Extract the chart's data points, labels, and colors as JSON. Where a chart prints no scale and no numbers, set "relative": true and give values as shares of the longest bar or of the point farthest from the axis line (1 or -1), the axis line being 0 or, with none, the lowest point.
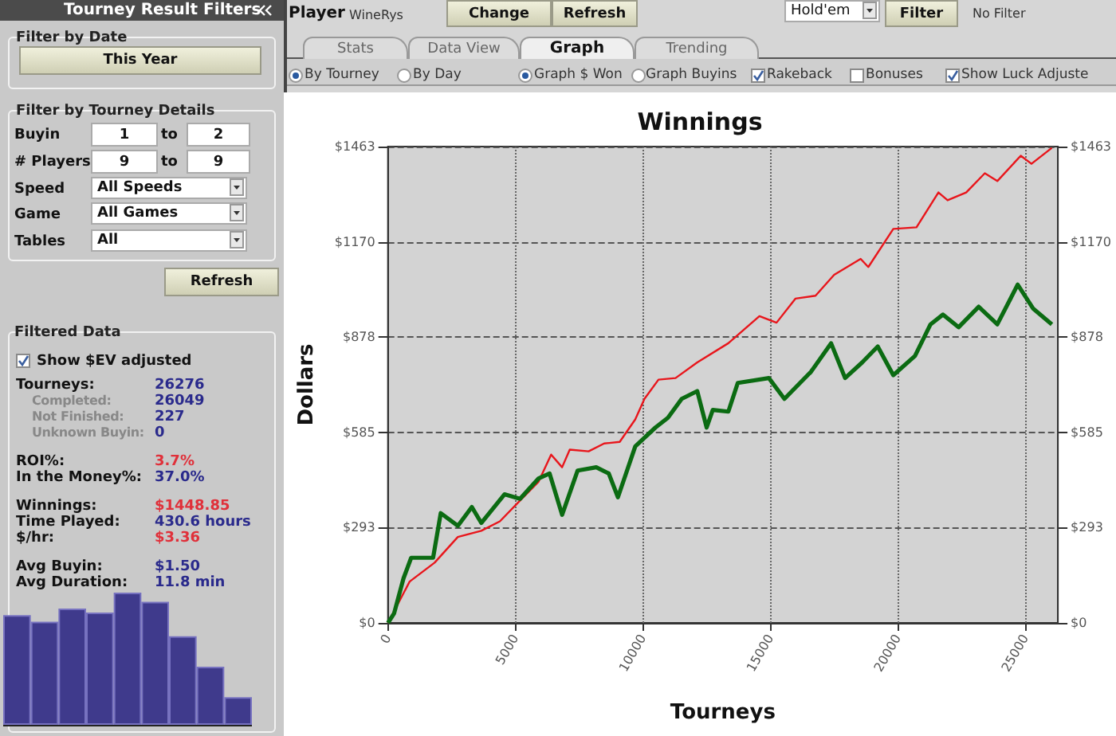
{
  "chart_data": [
    {
      "type": "other",
      "annotations": [
        "Tourney Result Filters",
        "Filter by Date",
        "This Year",
        "Filter by Tourney Details",
        "Buyin",
        "1",
        "to",
        "2",
        "# Players",
        "9",
        "to",
        "9",
        "Speed",
        "All Speeds",
        "Game",
        "All Games",
        "Tables",
        "All",
        "Refresh",
        "Filtered Data",
        "Show $EV adjusted",
        "Tourneys:",
        "26276",
        "Completed:",
        "26049",
        "Not Finished:",
        "227",
        "Unknown Buyin:",
        "0",
        "ROI%:",
        "3.7%",
        "In the Money%:",
        "37.0%",
        "Winnings:",
        "$1448.85",
        "Time Played:",
        "430.6 hours",
        "$/hr:",
        "$3.36",
        "Avg Buyin:",
        "$1.50",
        "Avg Duration:",
        "11.8 min",
        "Player",
        "WineRys",
        "Change",
        "Refresh",
        "Hold'em",
        "Filter",
        "No Filter",
        "Stats",
        "Data View",
        "Graph",
        "Trending",
        "By Tourney",
        "By Day",
        "Graph $ Won",
        "Graph Buyins",
        "Rakeback",
        "Bonuses",
        "Show Luck Adjuste"
      ]
    },
    {
      "type": "bar",
      "relative": true,
      "categories": [
        null,
        null,
        null,
        null,
        null,
        null,
        null,
        null,
        null
      ],
      "values": [
        0.83,
        0.78,
        0.88,
        0.85,
        1,
        0.93,
        0.67,
        0.44,
        0.21
      ],
      "color": "#3f3a8c"
    },
    {
      "type": "line",
      "title": "Winnings",
      "xlabel": "Tourneys",
      "ylabel": "Dollars",
      "xlim": [
        0,
        26276
      ],
      "xticks": [
        0,
        5000,
        10000,
        15000,
        20000,
        25000
      ],
      "ylim": [
        0,
        1463
      ],
      "yticks": [
        {
          "value": 0,
          "label": "$0"
        },
        {
          "value": 293,
          "label": "$293"
        },
        {
          "value": 585,
          "label": "$585"
        },
        {
          "value": 878,
          "label": "$878"
        },
        {
          "value": 1170,
          "label": "$1170"
        },
        {
          "value": 1463,
          "label": "$1463"
        }
      ],
      "y2lim": [
        0,
        1463
      ],
      "y2ticks": [
        {
          "value": 0,
          "label": "$0"
        },
        {
          "value": 293,
          "label": "$293"
        },
        {
          "value": 585,
          "label": "$585"
        },
        {
          "value": 878,
          "label": "$878"
        },
        {
          "value": 1170,
          "label": "$1170"
        },
        {
          "value": 1463,
          "label": "$1463"
        }
      ],
      "grid": true,
      "series": [
        {
          "color": "#e8151b",
          "x": [
            0,
            850,
            1830,
            2740,
            3660,
            4390,
            5120,
            5910,
            6400,
            6830,
            7130,
            7870,
            8480,
            9090,
            9700,
            10060,
            10610,
            11280,
            12130,
            13350,
            14570,
            15240,
            15980,
            16770,
            17500,
            18540,
            18840,
            19820,
            20730,
            21590,
            21950,
            22680,
            23410,
            23900,
            24820,
            25240,
            26040
          ],
          "values": [
            0,
            127,
            185,
            264,
            283,
            312,
            371,
            434,
            517,
            478,
            532,
            527,
            551,
            556,
            625,
            688,
            747,
            752,
            800,
            859,
            942,
            922,
            996,
            1005,
            1069,
            1118,
            1093,
            1210,
            1215,
            1322,
            1298,
            1322,
            1381,
            1357,
            1435,
            1410,
            1459
          ]
        },
        {
          "color": "#0b6b12",
          "x": [
            0,
            240,
            610,
            910,
            1770,
            2070,
            2740,
            3290,
            3660,
            4570,
            5180,
            5910,
            6340,
            6830,
            7440,
            8170,
            8660,
            9020,
            9700,
            10490,
            10980,
            11520,
            12130,
            12500,
            12740,
            13350,
            13720,
            14940,
            15550,
            16590,
            17380,
            17930,
            18600,
            19210,
            19820,
            20670,
            21280,
            21770,
            22380,
            23170,
            23900,
            24700,
            25300,
            26040
          ],
          "values": [
            0,
            29,
            137,
            200,
            200,
            337,
            298,
            356,
            307,
            395,
            381,
            444,
            459,
            332,
            468,
            478,
            459,
            386,
            542,
            600,
            630,
            688,
            712,
            600,
            654,
            649,
            737,
            752,
            688,
            771,
            859,
            752,
            800,
            849,
            761,
            820,
            917,
            947,
            908,
            971,
            917,
            1039,
            966,
            917
          ]
        }
      ]
    }
  ]
}
